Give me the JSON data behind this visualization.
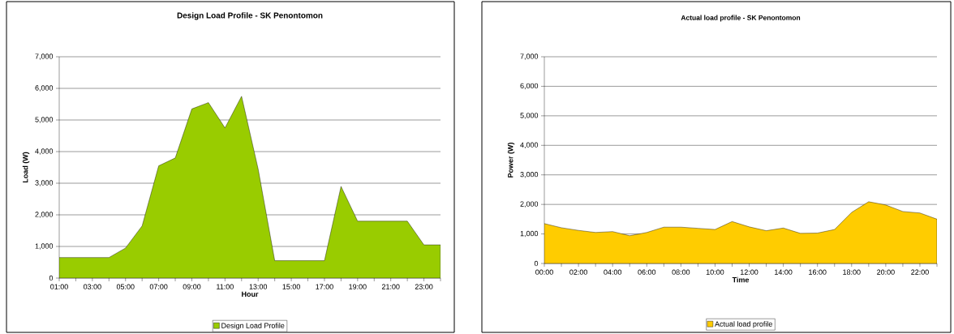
{
  "chart_data": [
    {
      "type": "area",
      "title": "Design Load Profile - SK Penontomon",
      "xlabel": "Hour",
      "ylabel": "Load (W)",
      "categories": [
        "01:00",
        null,
        "03:00",
        null,
        "05:00",
        null,
        "07:00",
        null,
        "09:00",
        null,
        "11:00",
        null,
        "13:00",
        null,
        "15:00",
        null,
        "17:00",
        null,
        "19:00",
        null,
        "21:00",
        null,
        "23:00",
        null
      ],
      "series": [
        {
          "name": "Design Load Profile",
          "color": "#99cc00",
          "values": [
            650,
            650,
            650,
            650,
            950,
            1650,
            3550,
            3800,
            5350,
            5550,
            4750,
            5750,
            3450,
            550,
            550,
            550,
            550,
            2900,
            1800,
            1800,
            1800,
            1800,
            1050,
            1050
          ]
        }
      ],
      "ylim": [
        0,
        7000
      ],
      "yticks": [
        0,
        {
          "value": 1000,
          "label": "1,000"
        },
        {
          "value": 2000,
          "label": "2,000"
        },
        {
          "value": 3000,
          "label": "3,000"
        },
        {
          "value": 4000,
          "label": "4,000"
        },
        {
          "value": 5000,
          "label": "5,000"
        },
        {
          "value": 6000,
          "label": "6,000"
        },
        {
          "value": 7000,
          "label": "7,000"
        }
      ],
      "grid": "y",
      "legend": "bottom"
    },
    {
      "type": "area",
      "title": "Actual load profile - SK Penontomon",
      "xlabel": "Time",
      "ylabel": "Power (W)",
      "categories": [
        "00:00",
        null,
        "02:00",
        null,
        "04:00",
        null,
        "06:00",
        null,
        "08:00",
        null,
        "10:00",
        null,
        "12:00",
        null,
        "14:00",
        null,
        "16:00",
        null,
        "18:00",
        null,
        "20:00",
        null,
        "22:00",
        null
      ],
      "series": [
        {
          "name": "Actual load profile",
          "color": "#ffcc00",
          "values": [
            1350,
            1210,
            1120,
            1050,
            1080,
            940,
            1050,
            1230,
            1230,
            1190,
            1150,
            1420,
            1240,
            1110,
            1200,
            1020,
            1030,
            1150,
            1730,
            2090,
            1980,
            1760,
            1710,
            1500
          ]
        }
      ],
      "ylim": [
        0,
        7000
      ],
      "yticks": [
        0,
        {
          "value": 1000,
          "label": "1,000"
        },
        {
          "value": 2000,
          "label": "2,000"
        },
        {
          "value": 3000,
          "label": "3,000"
        },
        {
          "value": 4000,
          "label": "4,000"
        },
        {
          "value": 5000,
          "label": "5,000"
        },
        {
          "value": 6000,
          "label": "6,000"
        },
        {
          "value": 7000,
          "label": "7,000"
        }
      ],
      "grid": "y",
      "legend": "bottom"
    }
  ]
}
